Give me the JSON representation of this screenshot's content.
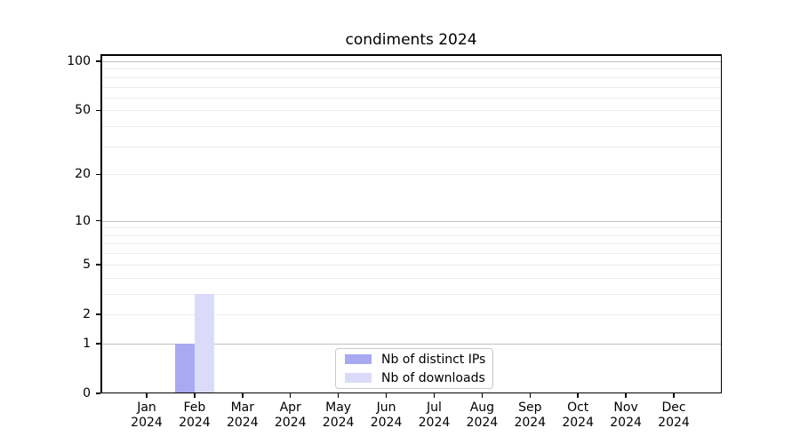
{
  "chart_data": {
    "type": "bar",
    "title": "condiments 2024",
    "xlabel": "",
    "ylabel": "",
    "categories": [
      "Jan",
      "Feb",
      "Mar",
      "Apr",
      "May",
      "Jun",
      "Jul",
      "Aug",
      "Sep",
      "Oct",
      "Nov",
      "Dec"
    ],
    "category_year": "2024",
    "series": [
      {
        "name": "Nb of distinct IPs",
        "color": "#a9a9f2",
        "values": [
          0,
          1,
          0,
          0,
          0,
          0,
          0,
          0,
          0,
          0,
          0,
          0
        ]
      },
      {
        "name": "Nb of downloads",
        "color": "#dbdbf9",
        "values": [
          0,
          3,
          0,
          0,
          0,
          0,
          0,
          0,
          0,
          0,
          0,
          0
        ]
      }
    ],
    "yscale": "log1p",
    "ylim": [
      0,
      110
    ],
    "y_ticks": [
      0,
      1,
      2,
      5,
      10,
      20,
      50,
      100
    ],
    "y_minor_gridlines": [
      3,
      4,
      6,
      7,
      8,
      9,
      30,
      40,
      60,
      70,
      80,
      90
    ],
    "y_decade_gridlines": [
      1,
      10,
      100
    ],
    "grid": true,
    "legend_position": "lower center"
  },
  "colors": {
    "bar_distinct_ips": "#a9a9f2",
    "bar_downloads": "#dbdbf9",
    "grid_major": "#c0c0c0",
    "grid_minor": "#ececec",
    "spine": "#000000",
    "text": "#000000",
    "legend_border": "#c9c9c9",
    "background": "#ffffff"
  }
}
